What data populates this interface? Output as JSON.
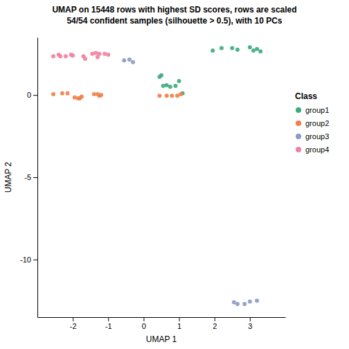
{
  "chart_data": {
    "type": "scatter",
    "title": "UMAP on 15448 rows with highest SD scores, rows are scaled",
    "subtitle": "54/54 confident samples (silhouette > 0.5), with 10 PCs",
    "x_label": "UMAP 1",
    "y_label": "UMAP 2",
    "xlim": [
      -3.0,
      4.0
    ],
    "ylim": [
      -13.5,
      3.5
    ],
    "xticks": [
      -2,
      -1,
      0,
      1,
      2,
      3
    ],
    "yticks": [
      0,
      -5,
      -10
    ],
    "grid": false,
    "legend": "right",
    "legend_title": "Class",
    "series": [
      {
        "name": "group1",
        "color": "#3DAA7D",
        "x": [
          1.95,
          2.2,
          2.5,
          2.65,
          3.0,
          3.1,
          3.2,
          3.3,
          0.45,
          0.5,
          0.55,
          0.65,
          0.75,
          0.9,
          1.0,
          1.1
        ],
        "values": [
          2.7,
          2.85,
          2.85,
          2.75,
          2.9,
          2.7,
          2.8,
          2.65,
          1.1,
          1.2,
          0.55,
          0.6,
          0.5,
          0.55,
          0.85,
          0.1
        ]
      },
      {
        "name": "group2",
        "color": "#F07E45",
        "x": [
          -2.55,
          -2.3,
          -2.15,
          -1.95,
          -1.85,
          -1.8,
          -1.75,
          -1.4,
          -1.3,
          -1.25,
          -1.2,
          0.45,
          0.65,
          0.8,
          0.95,
          1.05
        ],
        "values": [
          0.05,
          0.1,
          0.1,
          -0.15,
          -0.2,
          -0.2,
          -0.1,
          0.05,
          0.05,
          -0.05,
          0.0,
          -0.05,
          -0.05,
          -0.05,
          -0.05,
          0.05
        ]
      },
      {
        "name": "group3",
        "color": "#8B99C8",
        "x": [
          -0.55,
          -0.4,
          -0.3,
          2.55,
          2.65,
          2.85,
          3.0,
          3.2
        ],
        "values": [
          2.1,
          2.15,
          2.0,
          -12.6,
          -12.7,
          -12.7,
          -12.55,
          -12.5
        ]
      },
      {
        "name": "group4",
        "color": "#F080A0",
        "x": [
          -2.55,
          -2.4,
          -2.35,
          -2.2,
          -2.05,
          -2.0,
          -1.7,
          -1.65,
          -1.45,
          -1.35,
          -1.3,
          -1.25,
          -1.1,
          -1.0
        ],
        "values": [
          2.35,
          2.45,
          2.35,
          2.35,
          2.45,
          2.4,
          2.35,
          2.2,
          2.5,
          2.55,
          2.3,
          2.5,
          2.5,
          2.45
        ]
      }
    ]
  }
}
